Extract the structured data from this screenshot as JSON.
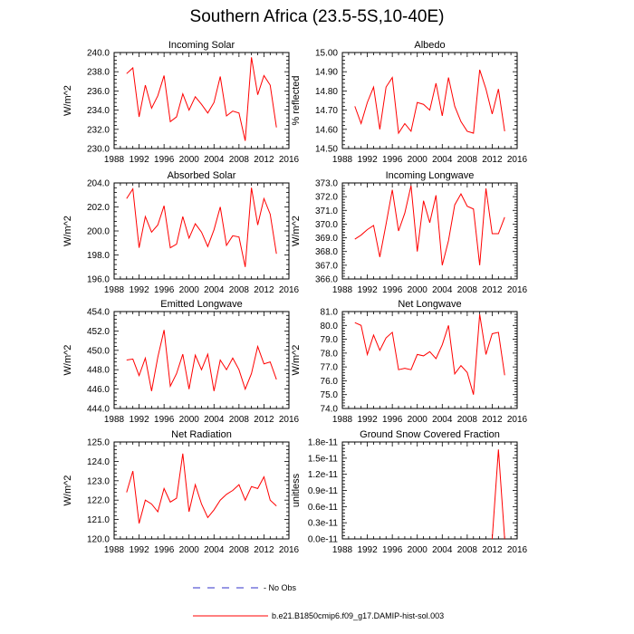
{
  "title": "Southern Africa (23.5-5S,10-40E)",
  "colors": {
    "model": "#ff0000",
    "obs": "#3232c8",
    "axis": "#000000"
  },
  "legend": {
    "obs_label": "No Obs",
    "model_label": "b.e21.B1850cmip6.f09_g17.DAMIP-hist-sol.003"
  },
  "chart_data": [
    {
      "type": "line",
      "title": "Incoming Solar",
      "ylabel": "W/m^2",
      "xlim": [
        1988,
        2016
      ],
      "xticks": [
        1988,
        1992,
        1996,
        2000,
        2004,
        2008,
        2012,
        2016
      ],
      "ylim": [
        230,
        240
      ],
      "yticks": [
        230,
        232,
        234,
        236,
        238,
        240
      ],
      "ytick_labels": [
        "230.0",
        "232.0",
        "234.0",
        "236.0",
        "238.0",
        "240.0"
      ],
      "x": [
        1990,
        1991,
        1992,
        1993,
        1994,
        1995,
        1996,
        1997,
        1998,
        1999,
        2000,
        2001,
        2002,
        2003,
        2004,
        2005,
        2006,
        2007,
        2008,
        2009,
        2010,
        2011,
        2012,
        2013,
        2014
      ],
      "series": [
        {
          "values": [
            237.8,
            238.4,
            233.3,
            236.6,
            234.2,
            235.5,
            237.6,
            232.8,
            233.3,
            235.7,
            234.0,
            235.4,
            234.6,
            233.7,
            234.8,
            237.5,
            233.4,
            233.9,
            233.7,
            230.8,
            239.5,
            235.6,
            237.6,
            236.6,
            232.2
          ]
        }
      ]
    },
    {
      "type": "line",
      "title": "Albedo",
      "ylabel": "% reflected",
      "xlim": [
        1988,
        2016
      ],
      "xticks": [
        1988,
        1992,
        1996,
        2000,
        2004,
        2008,
        2012,
        2016
      ],
      "ylim": [
        14.5,
        15.0
      ],
      "yticks": [
        14.5,
        14.6,
        14.7,
        14.8,
        14.9,
        15.0
      ],
      "ytick_labels": [
        "14.50",
        "14.60",
        "14.70",
        "14.80",
        "14.90",
        "15.00"
      ],
      "x": [
        1990,
        1991,
        1992,
        1993,
        1994,
        1995,
        1996,
        1997,
        1998,
        1999,
        2000,
        2001,
        2002,
        2003,
        2004,
        2005,
        2006,
        2007,
        2008,
        2009,
        2010,
        2011,
        2012,
        2013,
        2014
      ],
      "series": [
        {
          "values": [
            14.72,
            14.63,
            14.74,
            14.82,
            14.6,
            14.82,
            14.87,
            14.58,
            14.63,
            14.59,
            14.74,
            14.73,
            14.7,
            14.84,
            14.67,
            14.87,
            14.72,
            14.64,
            14.59,
            14.58,
            14.91,
            14.81,
            14.68,
            14.81,
            14.59
          ]
        }
      ]
    },
    {
      "type": "line",
      "title": "Absorbed Solar",
      "ylabel": "W/m^2",
      "xlim": [
        1988,
        2016
      ],
      "xticks": [
        1988,
        1992,
        1996,
        2000,
        2004,
        2008,
        2012,
        2016
      ],
      "ylim": [
        196,
        204
      ],
      "yticks": [
        196,
        198,
        200,
        202,
        204
      ],
      "ytick_labels": [
        "196.0",
        "198.0",
        "200.0",
        "202.0",
        "204.0"
      ],
      "x": [
        1990,
        1991,
        1992,
        1993,
        1994,
        1995,
        1996,
        1997,
        1998,
        1999,
        2000,
        2001,
        2002,
        2003,
        2004,
        2005,
        2006,
        2007,
        2008,
        2009,
        2010,
        2011,
        2012,
        2013,
        2014
      ],
      "series": [
        {
          "values": [
            202.7,
            203.5,
            198.6,
            201.2,
            199.9,
            200.5,
            202.1,
            198.6,
            198.9,
            201.2,
            199.4,
            200.6,
            199.9,
            198.7,
            200.1,
            202.0,
            198.8,
            199.6,
            199.5,
            197.0,
            203.6,
            200.5,
            202.7,
            201.4,
            198.1
          ]
        }
      ]
    },
    {
      "type": "line",
      "title": "Incoming Longwave",
      "ylabel": "W/m^2",
      "xlim": [
        1988,
        2016
      ],
      "xticks": [
        1988,
        1992,
        1996,
        2000,
        2004,
        2008,
        2012,
        2016
      ],
      "ylim": [
        366,
        373
      ],
      "yticks": [
        366,
        367,
        368,
        369,
        370,
        371,
        372,
        373
      ],
      "ytick_labels": [
        "366.0",
        "367.0",
        "368.0",
        "369.0",
        "370.0",
        "371.0",
        "372.0",
        "373.0"
      ],
      "x": [
        1990,
        1991,
        1992,
        1993,
        1994,
        1995,
        1996,
        1997,
        1998,
        1999,
        2000,
        2001,
        2002,
        2003,
        2004,
        2005,
        2006,
        2007,
        2008,
        2009,
        2010,
        2011,
        2012,
        2013,
        2014
      ],
      "series": [
        {
          "values": [
            368.9,
            369.2,
            369.6,
            369.9,
            367.6,
            370.0,
            372.5,
            369.5,
            370.8,
            372.8,
            368.0,
            371.7,
            370.1,
            372.1,
            367.0,
            368.8,
            371.4,
            372.2,
            371.3,
            371.1,
            367.0,
            372.6,
            369.3,
            369.3,
            370.5
          ]
        }
      ]
    },
    {
      "type": "line",
      "title": "Emitted Longwave",
      "ylabel": "W/m^2",
      "xlim": [
        1988,
        2016
      ],
      "xticks": [
        1988,
        1992,
        1996,
        2000,
        2004,
        2008,
        2012,
        2016
      ],
      "ylim": [
        444,
        454
      ],
      "yticks": [
        444,
        446,
        448,
        450,
        452,
        454
      ],
      "ytick_labels": [
        "444.0",
        "446.0",
        "448.0",
        "450.0",
        "452.0",
        "454.0"
      ],
      "x": [
        1990,
        1991,
        1992,
        1993,
        1994,
        1995,
        1996,
        1997,
        1998,
        1999,
        2000,
        2001,
        2002,
        2003,
        2004,
        2005,
        2006,
        2007,
        2008,
        2009,
        2010,
        2011,
        2012,
        2013,
        2014
      ],
      "series": [
        {
          "values": [
            449.0,
            449.1,
            447.4,
            449.2,
            445.8,
            449.3,
            452.1,
            446.3,
            447.6,
            449.6,
            446.0,
            449.5,
            448.0,
            449.6,
            445.8,
            449.0,
            448.0,
            449.2,
            448.0,
            446.0,
            447.6,
            450.4,
            448.6,
            448.8,
            447.0
          ]
        }
      ]
    },
    {
      "type": "line",
      "title": "Net Longwave",
      "ylabel": "W/m^2",
      "xlim": [
        1988,
        2016
      ],
      "xticks": [
        1988,
        1992,
        1996,
        2000,
        2004,
        2008,
        2012,
        2016
      ],
      "ylim": [
        74,
        81
      ],
      "yticks": [
        74,
        75,
        76,
        77,
        78,
        79,
        80,
        81
      ],
      "ytick_labels": [
        "74.0",
        "75.0",
        "76.0",
        "77.0",
        "78.0",
        "79.0",
        "80.0",
        "81.0"
      ],
      "x": [
        1990,
        1991,
        1992,
        1993,
        1994,
        1995,
        1996,
        1997,
        1998,
        1999,
        2000,
        2001,
        2002,
        2003,
        2004,
        2005,
        2006,
        2007,
        2008,
        2009,
        2010,
        2011,
        2012,
        2013,
        2014
      ],
      "series": [
        {
          "values": [
            80.2,
            80.0,
            77.9,
            79.3,
            78.2,
            79.1,
            79.5,
            76.8,
            76.9,
            76.8,
            77.9,
            77.8,
            78.1,
            77.6,
            78.6,
            80.0,
            76.5,
            77.1,
            76.6,
            75.0,
            80.8,
            77.9,
            79.4,
            79.5,
            76.4
          ]
        }
      ]
    },
    {
      "type": "line",
      "title": "Net Radiation",
      "ylabel": "W/m^2",
      "xlim": [
        1988,
        2016
      ],
      "xticks": [
        1988,
        1992,
        1996,
        2000,
        2004,
        2008,
        2012,
        2016
      ],
      "ylim": [
        120,
        125
      ],
      "yticks": [
        120,
        121,
        122,
        123,
        124,
        125
      ],
      "ytick_labels": [
        "120.0",
        "121.0",
        "122.0",
        "123.0",
        "124.0",
        "125.0"
      ],
      "x": [
        1990,
        1991,
        1992,
        1993,
        1994,
        1995,
        1996,
        1997,
        1998,
        1999,
        2000,
        2001,
        2002,
        2003,
        2004,
        2005,
        2006,
        2007,
        2008,
        2009,
        2010,
        2011,
        2012,
        2013,
        2014
      ],
      "series": [
        {
          "values": [
            122.4,
            123.5,
            120.8,
            122.0,
            121.8,
            121.4,
            122.6,
            121.9,
            122.1,
            124.4,
            121.4,
            122.8,
            121.8,
            121.1,
            121.5,
            122.0,
            122.3,
            122.5,
            122.8,
            122.0,
            122.7,
            122.6,
            123.2,
            122.0,
            121.7
          ]
        }
      ]
    },
    {
      "type": "line",
      "title": "Ground Snow Covered Fraction",
      "ylabel": "unitless",
      "xlim": [
        1988,
        2016
      ],
      "xticks": [
        1988,
        1992,
        1996,
        2000,
        2004,
        2008,
        2012,
        2016
      ],
      "ylim": [
        0,
        1.8e-11
      ],
      "yticks": [
        0,
        3e-12,
        6e-12,
        9e-12,
        1.2e-11,
        1.5e-11,
        1.8e-11
      ],
      "ytick_labels": [
        "0.0e-11",
        "0.3e-11",
        "0.6e-11",
        "0.9e-11",
        "1.2e-11",
        "1.5e-11",
        "1.8e-11"
      ],
      "x": [
        2012,
        2013,
        2014
      ],
      "series": [
        {
          "values": [
            0,
            1.66e-11,
            0
          ]
        }
      ]
    }
  ]
}
